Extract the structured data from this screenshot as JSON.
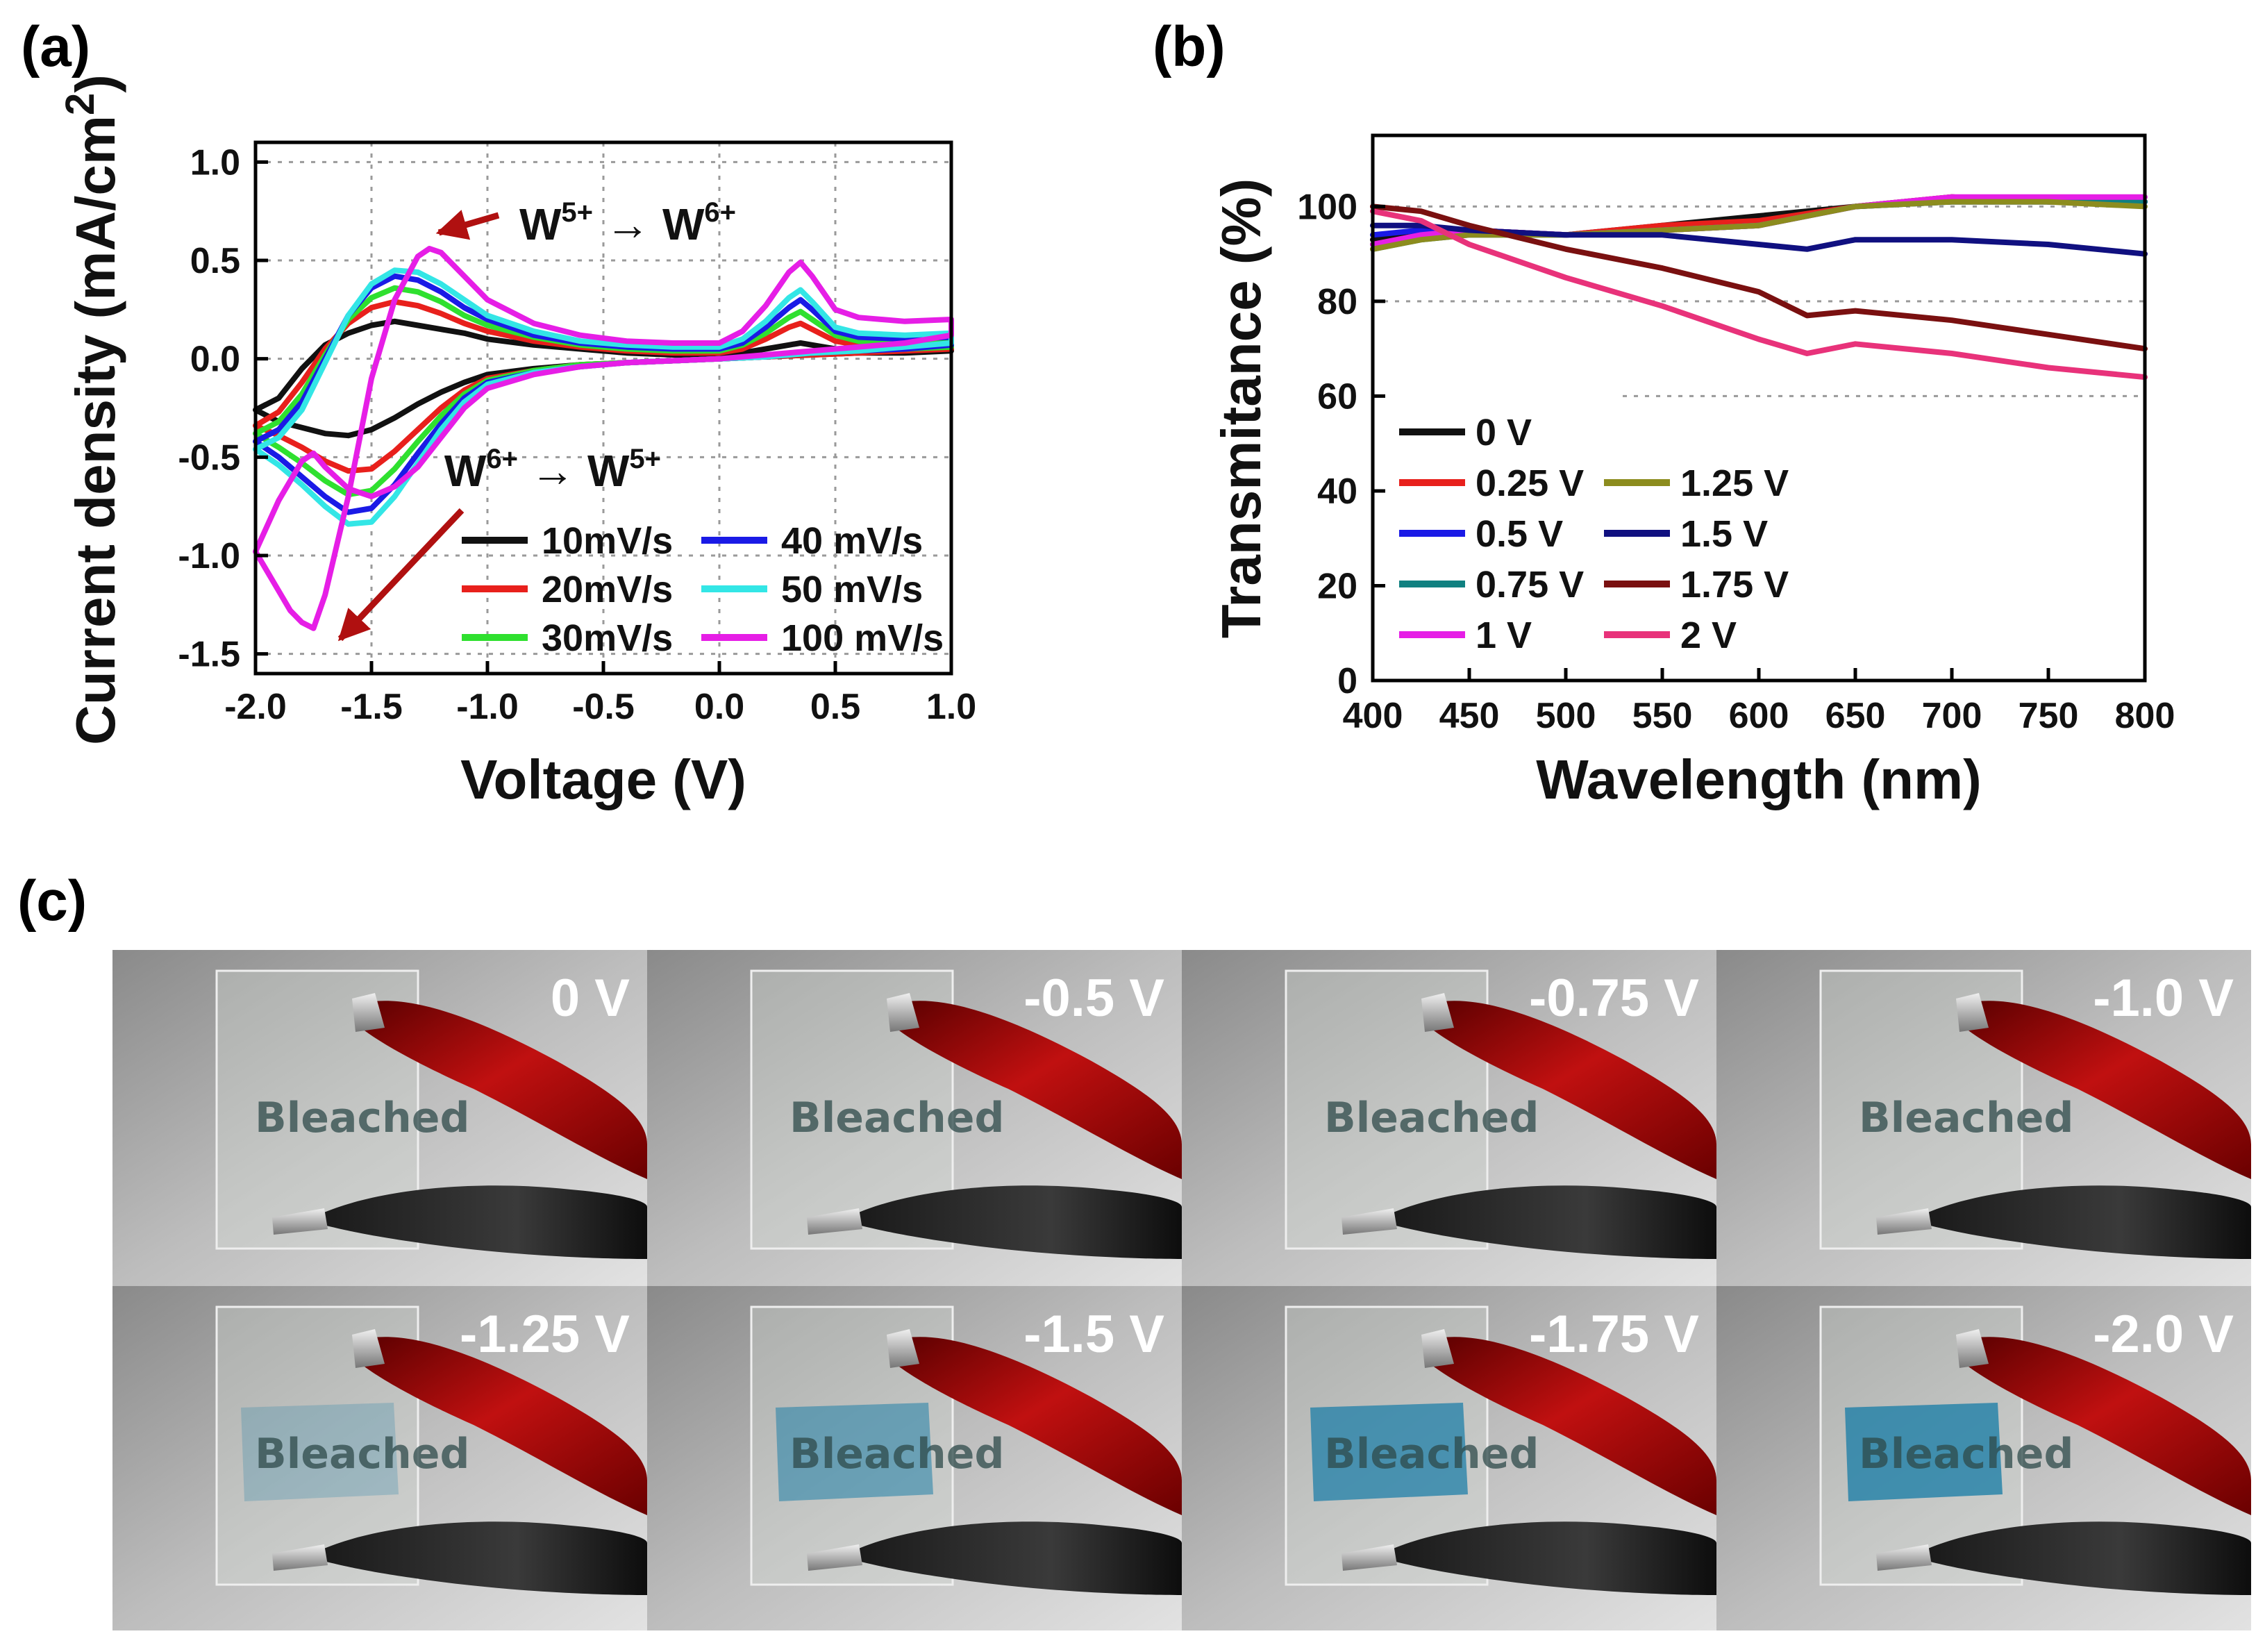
{
  "panel_labels": {
    "a": "(a)",
    "b": "(b)",
    "c": "(c)"
  },
  "chart_data": [
    {
      "id": "a",
      "type": "line",
      "title": "",
      "xlabel": "Voltage (V)",
      "ylabel": "Current density (mA/cm2)",
      "ylabel_main": "Current density (mA/cm",
      "ylabel_sup": "2",
      "ylabel_close": ")",
      "xlim": [
        -2.0,
        1.0
      ],
      "ylim": [
        -1.6,
        1.1
      ],
      "xticks": [
        -2.0,
        -1.5,
        -1.0,
        -0.5,
        0.0,
        0.5,
        1.0
      ],
      "xtick_labels": [
        "-2.0",
        "-1.5",
        "-1.0",
        "-0.5",
        "0.0",
        "0.5",
        "1.0"
      ],
      "yticks": [
        1.0,
        0.5,
        0.0,
        -0.5,
        -1.0,
        -1.5
      ],
      "ytick_labels": [
        "1.0",
        "0.5",
        "0.0",
        "-0.5",
        "-1.0",
        "-1.5"
      ],
      "grid": true,
      "legend_position": "bottom-right",
      "annotations": [
        {
          "base1": "W",
          "sup1": "5+",
          "arrow": "→",
          "base2": "W",
          "sup2": "6+"
        },
        {
          "base1": "W",
          "sup1": "6+",
          "arrow": "→",
          "base2": "W",
          "sup2": "5+"
        }
      ],
      "series": [
        {
          "name": "10mV/s",
          "color": "#111111",
          "x": [
            -2.0,
            -1.9,
            -1.8,
            -1.7,
            -1.6,
            -1.5,
            -1.4,
            -1.3,
            -1.2,
            -1.1,
            -1.0,
            -0.8,
            -0.6,
            -0.4,
            -0.2,
            0.0,
            0.1,
            0.2,
            0.3,
            0.35,
            0.4,
            0.5,
            0.6,
            0.8,
            1.0,
            1.0,
            0.8,
            0.6,
            0.4,
            0.2,
            0.0,
            -0.2,
            -0.4,
            -0.6,
            -0.8,
            -1.0,
            -1.1,
            -1.2,
            -1.3,
            -1.4,
            -1.5,
            -1.6,
            -1.7,
            -1.8,
            -1.9,
            -2.0
          ],
          "y": [
            -0.26,
            -0.2,
            -0.05,
            0.07,
            0.13,
            0.17,
            0.19,
            0.17,
            0.15,
            0.13,
            0.1,
            0.07,
            0.05,
            0.03,
            0.02,
            0.02,
            0.03,
            0.05,
            0.07,
            0.08,
            0.07,
            0.05,
            0.04,
            0.04,
            0.05,
            0.04,
            0.03,
            0.03,
            0.02,
            0.01,
            0.0,
            -0.01,
            -0.02,
            -0.03,
            -0.05,
            -0.08,
            -0.12,
            -0.17,
            -0.23,
            -0.3,
            -0.36,
            -0.39,
            -0.38,
            -0.35,
            -0.32,
            -0.26
          ]
        },
        {
          "name": "20mV/s",
          "color": "#e8201c",
          "x": [
            -2.0,
            -1.9,
            -1.8,
            -1.7,
            -1.6,
            -1.5,
            -1.4,
            -1.3,
            -1.2,
            -1.1,
            -1.0,
            -0.8,
            -0.6,
            -0.4,
            -0.2,
            0.0,
            0.1,
            0.2,
            0.3,
            0.35,
            0.4,
            0.5,
            0.6,
            0.8,
            1.0,
            1.0,
            0.8,
            0.6,
            0.4,
            0.2,
            0.0,
            -0.2,
            -0.4,
            -0.6,
            -0.8,
            -1.0,
            -1.1,
            -1.2,
            -1.3,
            -1.4,
            -1.5,
            -1.6,
            -1.7,
            -1.8,
            -1.9,
            -2.0
          ],
          "y": [
            -0.34,
            -0.27,
            -0.12,
            0.05,
            0.18,
            0.26,
            0.29,
            0.27,
            0.23,
            0.18,
            0.14,
            0.09,
            0.06,
            0.04,
            0.03,
            0.03,
            0.05,
            0.1,
            0.16,
            0.18,
            0.15,
            0.09,
            0.07,
            0.06,
            0.07,
            0.05,
            0.04,
            0.03,
            0.02,
            0.01,
            0.0,
            -0.01,
            -0.02,
            -0.03,
            -0.06,
            -0.1,
            -0.16,
            -0.25,
            -0.36,
            -0.47,
            -0.56,
            -0.57,
            -0.52,
            -0.45,
            -0.39,
            -0.34
          ]
        },
        {
          "name": "30mV/s",
          "color": "#2fe02f",
          "x": [
            -2.0,
            -1.9,
            -1.8,
            -1.7,
            -1.6,
            -1.5,
            -1.4,
            -1.3,
            -1.2,
            -1.1,
            -1.0,
            -0.8,
            -0.6,
            -0.4,
            -0.2,
            0.0,
            0.1,
            0.2,
            0.3,
            0.35,
            0.4,
            0.5,
            0.6,
            0.8,
            1.0,
            1.0,
            0.8,
            0.6,
            0.4,
            0.2,
            0.0,
            -0.2,
            -0.4,
            -0.6,
            -0.8,
            -1.0,
            -1.1,
            -1.2,
            -1.3,
            -1.4,
            -1.5,
            -1.6,
            -1.7,
            -1.8,
            -1.9,
            -2.0
          ],
          "y": [
            -0.38,
            -0.32,
            -0.18,
            0.02,
            0.2,
            0.31,
            0.36,
            0.34,
            0.29,
            0.22,
            0.17,
            0.11,
            0.07,
            0.05,
            0.04,
            0.04,
            0.07,
            0.13,
            0.21,
            0.24,
            0.2,
            0.12,
            0.09,
            0.08,
            0.09,
            0.06,
            0.05,
            0.04,
            0.03,
            0.01,
            0.0,
            -0.01,
            -0.02,
            -0.03,
            -0.06,
            -0.11,
            -0.18,
            -0.29,
            -0.42,
            -0.56,
            -0.67,
            -0.69,
            -0.62,
            -0.53,
            -0.45,
            -0.38
          ]
        },
        {
          "name": "40 mV/s",
          "color": "#1a1ae6",
          "x": [
            -2.0,
            -1.9,
            -1.8,
            -1.7,
            -1.6,
            -1.5,
            -1.4,
            -1.3,
            -1.2,
            -1.1,
            -1.0,
            -0.8,
            -0.6,
            -0.4,
            -0.2,
            0.0,
            0.1,
            0.2,
            0.3,
            0.35,
            0.4,
            0.5,
            0.6,
            0.8,
            1.0,
            1.0,
            0.8,
            0.6,
            0.4,
            0.2,
            0.0,
            -0.2,
            -0.4,
            -0.6,
            -0.8,
            -1.0,
            -1.1,
            -1.2,
            -1.3,
            -1.4,
            -1.5,
            -1.6,
            -1.7,
            -1.8,
            -1.9,
            -2.0
          ],
          "y": [
            -0.42,
            -0.36,
            -0.22,
            0.0,
            0.22,
            0.36,
            0.42,
            0.4,
            0.34,
            0.26,
            0.2,
            0.12,
            0.08,
            0.06,
            0.05,
            0.05,
            0.08,
            0.16,
            0.26,
            0.3,
            0.25,
            0.14,
            0.11,
            0.1,
            0.11,
            0.07,
            0.05,
            0.04,
            0.03,
            0.01,
            0.0,
            -0.01,
            -0.02,
            -0.04,
            -0.07,
            -0.12,
            -0.2,
            -0.33,
            -0.48,
            -0.64,
            -0.76,
            -0.78,
            -0.7,
            -0.6,
            -0.5,
            -0.42
          ]
        },
        {
          "name": "50 mV/s",
          "color": "#33e6e6",
          "x": [
            -2.0,
            -1.9,
            -1.8,
            -1.7,
            -1.6,
            -1.5,
            -1.4,
            -1.3,
            -1.2,
            -1.1,
            -1.0,
            -0.8,
            -0.6,
            -0.4,
            -0.2,
            0.0,
            0.1,
            0.2,
            0.3,
            0.35,
            0.4,
            0.5,
            0.6,
            0.8,
            1.0,
            1.0,
            0.8,
            0.6,
            0.4,
            0.2,
            0.0,
            -0.2,
            -0.4,
            -0.6,
            -0.8,
            -1.0,
            -1.1,
            -1.2,
            -1.3,
            -1.4,
            -1.5,
            -1.6,
            -1.7,
            -1.8,
            -1.9,
            -2.0
          ],
          "y": [
            -0.46,
            -0.4,
            -0.26,
            -0.02,
            0.22,
            0.38,
            0.45,
            0.44,
            0.38,
            0.3,
            0.22,
            0.14,
            0.09,
            0.07,
            0.06,
            0.06,
            0.1,
            0.19,
            0.31,
            0.35,
            0.29,
            0.16,
            0.13,
            0.12,
            0.13,
            0.08,
            0.06,
            0.04,
            0.03,
            0.01,
            0.0,
            -0.01,
            -0.02,
            -0.04,
            -0.07,
            -0.13,
            -0.22,
            -0.36,
            -0.53,
            -0.7,
            -0.83,
            -0.84,
            -0.75,
            -0.64,
            -0.54,
            -0.46
          ]
        },
        {
          "name": "100 mV/s",
          "color": "#e61ee6",
          "x": [
            -2.0,
            -1.95,
            -1.9,
            -1.85,
            -1.8,
            -1.75,
            -1.7,
            -1.6,
            -1.5,
            -1.4,
            -1.3,
            -1.25,
            -1.2,
            -1.1,
            -1.0,
            -0.8,
            -0.6,
            -0.4,
            -0.2,
            0.0,
            0.1,
            0.2,
            0.3,
            0.35,
            0.4,
            0.5,
            0.6,
            0.8,
            1.0,
            1.0,
            0.8,
            0.6,
            0.4,
            0.2,
            0.0,
            -0.2,
            -0.4,
            -0.6,
            -0.8,
            -1.0,
            -1.1,
            -1.2,
            -1.3,
            -1.4,
            -1.5,
            -1.6,
            -1.7,
            -1.75,
            -1.8,
            -1.9,
            -2.0
          ],
          "y": [
            -0.98,
            -1.08,
            -1.18,
            -1.28,
            -1.34,
            -1.37,
            -1.2,
            -0.7,
            -0.1,
            0.3,
            0.52,
            0.56,
            0.54,
            0.42,
            0.3,
            0.18,
            0.12,
            0.09,
            0.08,
            0.08,
            0.14,
            0.27,
            0.44,
            0.49,
            0.42,
            0.25,
            0.21,
            0.19,
            0.2,
            0.12,
            0.08,
            0.06,
            0.04,
            0.02,
            0.0,
            -0.01,
            -0.02,
            -0.04,
            -0.08,
            -0.15,
            -0.25,
            -0.4,
            -0.55,
            -0.65,
            -0.7,
            -0.66,
            -0.55,
            -0.48,
            -0.52,
            -0.72,
            -0.98
          ]
        }
      ]
    },
    {
      "id": "b",
      "type": "line",
      "title": "",
      "xlabel": "Wavelength (nm)",
      "ylabel": "Transmitance (%)",
      "xlim": [
        400,
        800
      ],
      "ylim": [
        0,
        115
      ],
      "xticks": [
        400,
        450,
        500,
        550,
        600,
        650,
        700,
        750,
        800
      ],
      "xtick_labels": [
        "400",
        "450",
        "500",
        "550",
        "600",
        "650",
        "700",
        "750",
        "800"
      ],
      "yticks": [
        0,
        20,
        40,
        60,
        80,
        100
      ],
      "ytick_labels": [
        "0",
        "20",
        "40",
        "60",
        "80",
        "100"
      ],
      "grid": true,
      "legend_position": "bottom-left",
      "series": [
        {
          "name": "0 V",
          "color": "#111111",
          "x": [
            400,
            425,
            450,
            500,
            550,
            600,
            650,
            700,
            750,
            800
          ],
          "y": [
            93,
            95,
            95,
            94,
            96,
            98,
            100,
            102,
            101,
            101
          ]
        },
        {
          "name": "0.25 V",
          "color": "#e8201c",
          "x": [
            400,
            425,
            450,
            500,
            550,
            600,
            650,
            700,
            750,
            800
          ],
          "y": [
            92,
            94,
            95,
            94,
            96,
            97,
            100,
            102,
            101,
            101
          ]
        },
        {
          "name": "0.5 V",
          "color": "#1a1ae6",
          "x": [
            400,
            425,
            450,
            500,
            550,
            600,
            650,
            700,
            750,
            800
          ],
          "y": [
            94,
            95,
            95,
            94,
            95,
            96,
            100,
            101,
            101,
            101
          ]
        },
        {
          "name": "0.75 V",
          "color": "#108080",
          "x": [
            400,
            425,
            450,
            500,
            550,
            600,
            650,
            700,
            750,
            800
          ],
          "y": [
            91,
            93,
            94,
            94,
            95,
            96,
            100,
            101,
            101,
            101
          ]
        },
        {
          "name": "1 V",
          "color": "#e61ee6",
          "x": [
            400,
            425,
            450,
            500,
            550,
            600,
            650,
            700,
            750,
            800
          ],
          "y": [
            92,
            94,
            95,
            94,
            95,
            96,
            100,
            102,
            102,
            102
          ]
        },
        {
          "name": "1.25 V",
          "color": "#8c8c1e",
          "x": [
            400,
            425,
            450,
            500,
            550,
            600,
            650,
            700,
            750,
            800
          ],
          "y": [
            91,
            93,
            94,
            94,
            95,
            96,
            100,
            101,
            101,
            100
          ]
        },
        {
          "name": "1.5 V",
          "color": "#101080",
          "x": [
            400,
            425,
            450,
            500,
            550,
            600,
            625,
            650,
            700,
            750,
            800
          ],
          "y": [
            96,
            96,
            95,
            94,
            94,
            92,
            91,
            93,
            93,
            92,
            90
          ]
        },
        {
          "name": "1.75 V",
          "color": "#7a1010",
          "x": [
            400,
            425,
            450,
            500,
            550,
            600,
            625,
            650,
            700,
            750,
            800
          ],
          "y": [
            100,
            99,
            96,
            91,
            87,
            82,
            77,
            78,
            76,
            73,
            70
          ]
        },
        {
          "name": "2 V",
          "color": "#e8327a",
          "x": [
            400,
            425,
            450,
            500,
            550,
            600,
            625,
            650,
            700,
            750,
            800
          ],
          "y": [
            99,
            97,
            92,
            85,
            79,
            72,
            69,
            71,
            69,
            66,
            64
          ]
        }
      ]
    }
  ],
  "photos": {
    "bleached_text": "Bleached",
    "voltages": [
      "0 V",
      "-0.5 V",
      "-0.75 V",
      "-1.0 V",
      "-1.25 V",
      "-1.5 V",
      "-1.75 V",
      "-2.0 V"
    ]
  }
}
